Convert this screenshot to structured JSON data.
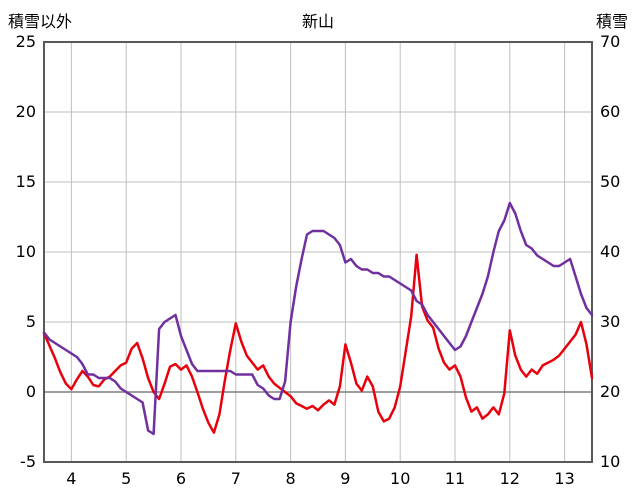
{
  "header": {
    "left_axis_title": "積雪以外",
    "title": "新山",
    "right_axis_title": "積雪"
  },
  "chart_data": {
    "type": "line",
    "title": "新山",
    "x_range": [
      3.5,
      13.5
    ],
    "x_ticks": [
      4,
      5,
      6,
      7,
      8,
      9,
      10,
      11,
      12,
      13
    ],
    "left_axis": {
      "label": "積雪以外",
      "min": -5,
      "max": 25,
      "ticks": [
        -5,
        0,
        5,
        10,
        15,
        20,
        25
      ]
    },
    "right_axis": {
      "label": "積雪",
      "min": 10,
      "max": 70,
      "ticks": [
        10,
        20,
        30,
        40,
        50,
        60,
        70
      ]
    },
    "grid": true,
    "zero_line_left_value": 0,
    "x": [
      3.5,
      3.6,
      3.7,
      3.8,
      3.9,
      4.0,
      4.1,
      4.2,
      4.3,
      4.4,
      4.5,
      4.6,
      4.7,
      4.8,
      4.9,
      5.0,
      5.1,
      5.2,
      5.3,
      5.4,
      5.5,
      5.6,
      5.7,
      5.8,
      5.9,
      6.0,
      6.1,
      6.2,
      6.3,
      6.4,
      6.5,
      6.6,
      6.7,
      6.8,
      6.9,
      7.0,
      7.1,
      7.2,
      7.3,
      7.4,
      7.5,
      7.6,
      7.7,
      7.8,
      7.9,
      8.0,
      8.1,
      8.2,
      8.3,
      8.4,
      8.5,
      8.6,
      8.7,
      8.8,
      8.9,
      9.0,
      9.1,
      9.2,
      9.3,
      9.4,
      9.5,
      9.6,
      9.7,
      9.8,
      9.9,
      10.0,
      10.1,
      10.2,
      10.3,
      10.4,
      10.5,
      10.6,
      10.7,
      10.8,
      10.9,
      11.0,
      11.1,
      11.2,
      11.3,
      11.4,
      11.5,
      11.6,
      11.7,
      11.8,
      11.9,
      12.0,
      12.1,
      12.2,
      12.3,
      12.4,
      12.5,
      12.6,
      12.7,
      12.8,
      12.9,
      13.0,
      13.1,
      13.2,
      13.3,
      13.4,
      13.5
    ],
    "series": [
      {
        "name": "積雪以外",
        "axis": "left",
        "color": "#e8000d",
        "width": 2.5,
        "values": [
          4.2,
          3.3,
          2.4,
          1.4,
          0.6,
          0.2,
          0.9,
          1.5,
          1.1,
          0.5,
          0.4,
          0.9,
          1.1,
          1.5,
          1.9,
          2.1,
          3.1,
          3.5,
          2.4,
          1.0,
          0.0,
          -0.5,
          0.6,
          1.8,
          2.0,
          1.6,
          1.9,
          1.1,
          0.0,
          -1.2,
          -2.2,
          -2.9,
          -1.6,
          0.8,
          3.0,
          4.9,
          3.6,
          2.6,
          2.1,
          1.6,
          1.9,
          1.1,
          0.6,
          0.3,
          0.0,
          -0.3,
          -0.8,
          -1.0,
          -1.2,
          -1.0,
          -1.3,
          -0.9,
          -0.6,
          -0.9,
          0.4,
          3.4,
          2.1,
          0.6,
          0.1,
          1.1,
          0.4,
          -1.4,
          -2.1,
          -1.9,
          -1.1,
          0.4,
          2.9,
          5.4,
          9.8,
          6.1,
          5.1,
          4.6,
          3.1,
          2.1,
          1.6,
          1.9,
          1.1,
          -0.4,
          -1.4,
          -1.1,
          -1.9,
          -1.6,
          -1.1,
          -1.6,
          -0.1,
          4.4,
          2.6,
          1.6,
          1.1,
          1.6,
          1.3,
          1.9,
          2.1,
          2.3,
          2.6,
          3.1,
          3.6,
          4.1,
          5.0,
          3.4,
          1.0
        ]
      },
      {
        "name": "積雪",
        "axis": "right",
        "color": "#7030a0",
        "width": 2.5,
        "values": [
          28.5,
          27.5,
          27.0,
          26.5,
          26.0,
          25.5,
          25.0,
          24.0,
          22.5,
          22.5,
          22.0,
          22.0,
          22.0,
          21.5,
          20.5,
          20.0,
          19.5,
          19.0,
          18.5,
          14.5,
          14.0,
          29.0,
          30.0,
          30.5,
          31.0,
          28.0,
          26.0,
          24.0,
          23.0,
          23.0,
          23.0,
          23.0,
          23.0,
          23.0,
          23.0,
          22.5,
          22.5,
          22.5,
          22.5,
          21.0,
          20.5,
          19.5,
          19.0,
          19.0,
          21.5,
          30.0,
          35.0,
          39.0,
          42.5,
          43.0,
          43.0,
          43.0,
          42.5,
          42.0,
          41.0,
          38.5,
          39.0,
          38.0,
          37.5,
          37.5,
          37.0,
          37.0,
          36.5,
          36.5,
          36.0,
          35.5,
          35.0,
          34.5,
          33.0,
          32.5,
          31.0,
          30.0,
          29.0,
          28.0,
          27.0,
          26.0,
          26.5,
          28.0,
          30.0,
          32.0,
          34.0,
          36.5,
          40.0,
          43.0,
          44.5,
          47.0,
          45.5,
          43.0,
          41.0,
          40.5,
          39.5,
          39.0,
          38.5,
          38.0,
          38.0,
          38.5,
          39.0,
          36.5,
          34.0,
          32.0,
          31.0
        ]
      }
    ],
    "colors": {
      "grid": "#bfbfbf",
      "zero_line": "#7f7f7f",
      "border": "#595959",
      "tick_text": "#000000",
      "background": "#ffffff"
    }
  }
}
